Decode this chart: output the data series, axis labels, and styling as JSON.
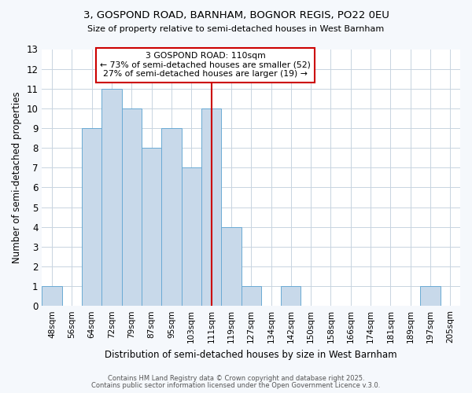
{
  "title1": "3, GOSPOND ROAD, BARNHAM, BOGNOR REGIS, PO22 0EU",
  "title2": "Size of property relative to semi-detached houses in West Barnham",
  "xlabel": "Distribution of semi-detached houses by size in West Barnham",
  "ylabel": "Number of semi-detached properties",
  "categories": [
    "48sqm",
    "56sqm",
    "64sqm",
    "72sqm",
    "79sqm",
    "87sqm",
    "95sqm",
    "103sqm",
    "111sqm",
    "119sqm",
    "127sqm",
    "134sqm",
    "142sqm",
    "150sqm",
    "158sqm",
    "166sqm",
    "174sqm",
    "181sqm",
    "189sqm",
    "197sqm",
    "205sqm"
  ],
  "values": [
    1,
    0,
    9,
    11,
    10,
    8,
    9,
    7,
    10,
    4,
    1,
    0,
    1,
    0,
    0,
    0,
    0,
    0,
    0,
    1,
    0
  ],
  "bar_color": "#c8d9ea",
  "bar_edge_color": "#6aaad4",
  "highlight_index": 8,
  "highlight_color": "#cc0000",
  "annotation_title": "3 GOSPOND ROAD: 110sqm",
  "annotation_line1": "← 73% of semi-detached houses are smaller (52)",
  "annotation_line2": "27% of semi-detached houses are larger (19) →",
  "annotation_box_color": "#ffffff",
  "annotation_box_edge": "#cc0000",
  "ylim": [
    0,
    13
  ],
  "yticks": [
    0,
    1,
    2,
    3,
    4,
    5,
    6,
    7,
    8,
    9,
    10,
    11,
    12,
    13
  ],
  "footnote1": "Contains HM Land Registry data © Crown copyright and database right 2025.",
  "footnote2": "Contains public sector information licensed under the Open Government Licence v.3.0.",
  "bg_color": "#f5f8fc",
  "plot_bg_color": "#ffffff",
  "grid_color": "#c8d4e0"
}
